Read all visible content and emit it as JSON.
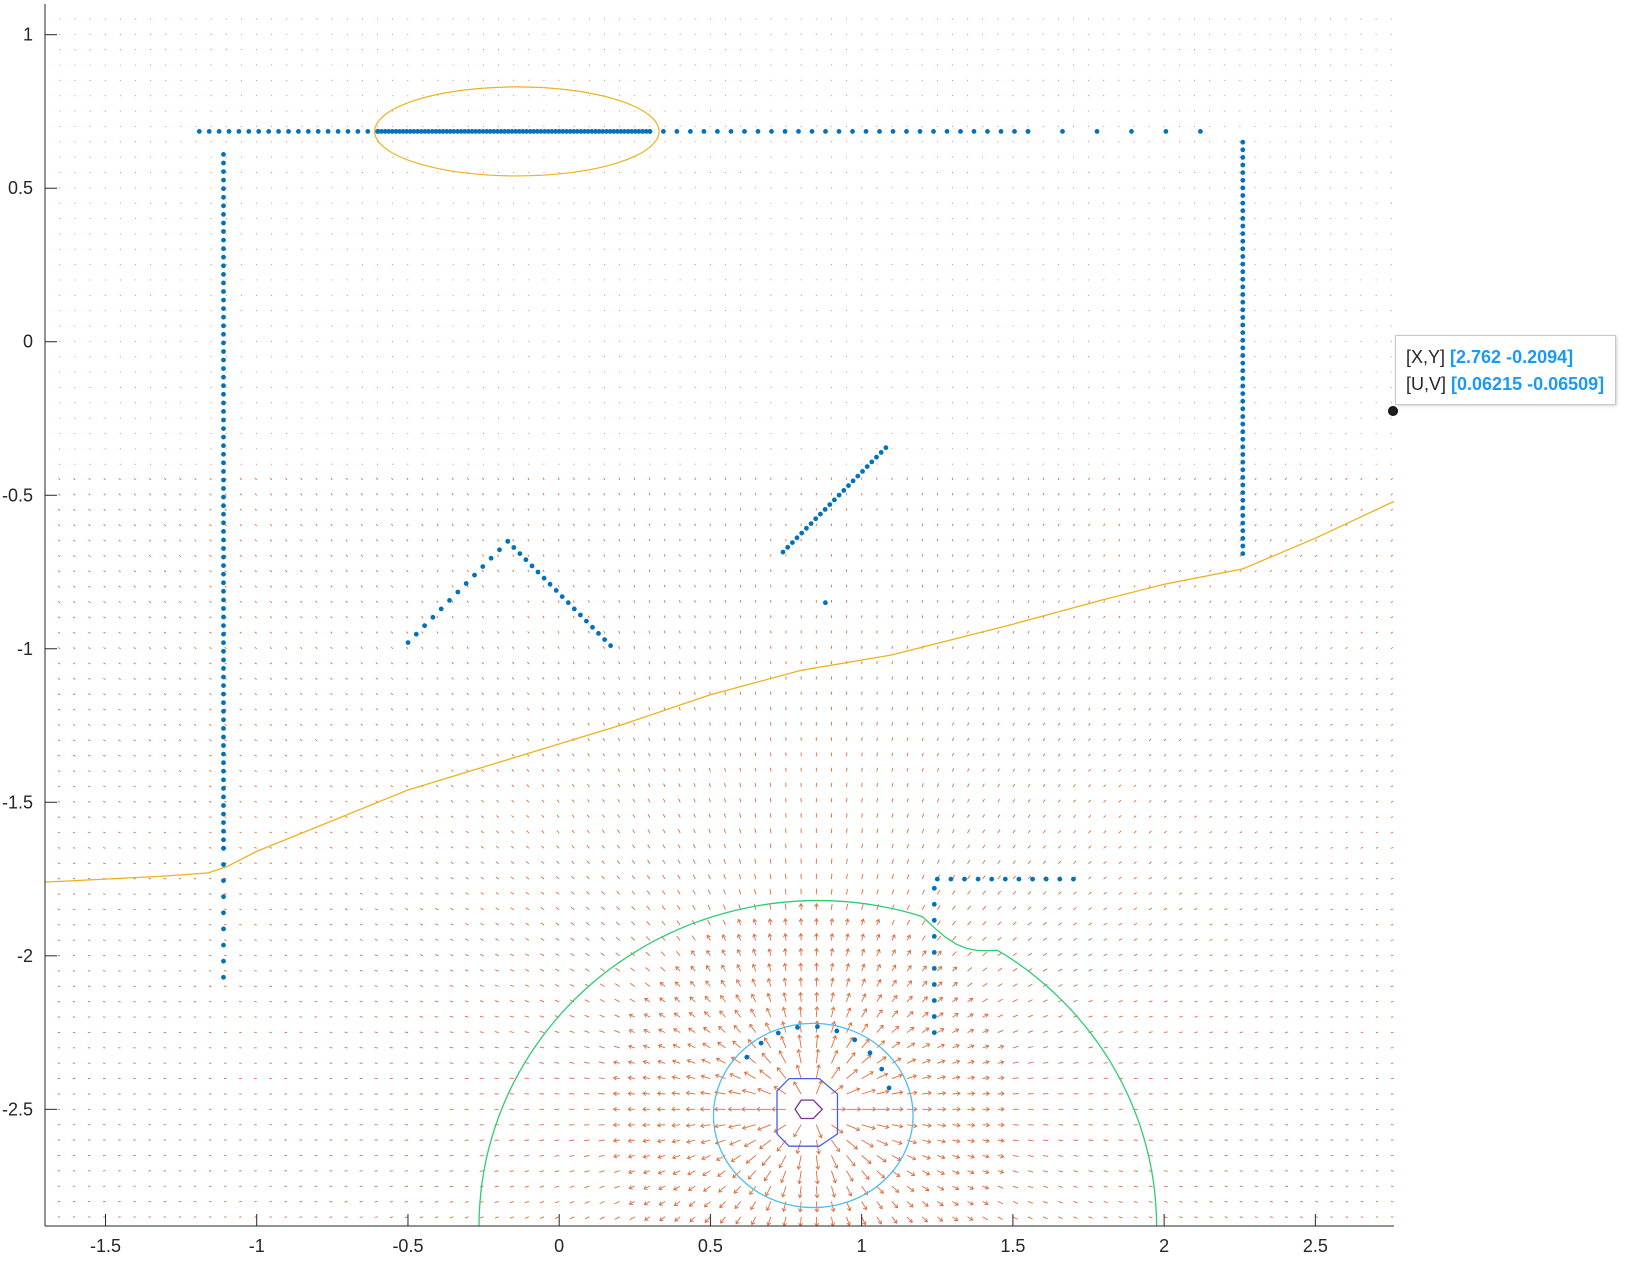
{
  "chart_data": {
    "type": "quiver-scatter-contour",
    "xlim": [
      -1.7,
      2.76
    ],
    "ylim": [
      -2.88,
      1.1
    ],
    "x_ticks": [
      -1.5,
      -1,
      -0.5,
      0,
      0.5,
      1,
      1.5,
      2,
      2.5
    ],
    "x_tick_labels": [
      "-1.5",
      "-1",
      "-0.5",
      "0",
      "0.5",
      "1",
      "1.5",
      "2",
      "2.5"
    ],
    "y_ticks": [
      1,
      0.5,
      0,
      -0.5,
      -1,
      -1.5,
      -2,
      -2.5
    ],
    "y_tick_labels": [
      "1",
      "0.5",
      "0",
      "-0.5",
      "-1",
      "-1.5",
      "-2",
      "-2.5"
    ],
    "grid": false,
    "quiver_field": {
      "source": [
        0.83,
        -2.5
      ],
      "dense_region_below_y": -0.45,
      "color": "#d95319"
    },
    "obstacle_points": {
      "color": "#0072bd",
      "segments": [
        {
          "from": [
            -1.19,
            0.685
          ],
          "to": [
            -0.6,
            0.685
          ],
          "step": 0.032
        },
        {
          "from": [
            -0.6,
            0.685
          ],
          "to": [
            0.3,
            0.685
          ],
          "step": 0.012
        },
        {
          "from": [
            0.3,
            0.685
          ],
          "to": [
            1.55,
            0.685
          ],
          "step": 0.045
        },
        {
          "from": [
            1.55,
            0.685
          ],
          "to": [
            2.12,
            0.685
          ],
          "step": 0.11
        },
        {
          "from": [
            -1.11,
            0.61
          ],
          "to": [
            -1.11,
            -1.65
          ],
          "step": 0.028
        },
        {
          "from": [
            -1.11,
            -1.65
          ],
          "to": [
            -1.11,
            -2.07
          ],
          "step": 0.055
        },
        {
          "from": [
            2.26,
            0.65
          ],
          "to": [
            2.26,
            -0.69
          ],
          "step": 0.025
        },
        {
          "from": [
            -0.17,
            -0.65
          ],
          "to": [
            0.17,
            -0.99
          ],
          "step": 0.028
        },
        {
          "from": [
            -0.17,
            -0.65
          ],
          "to": [
            -0.5,
            -0.98
          ],
          "step": 0.04
        },
        {
          "from": [
            0.74,
            -0.685
          ],
          "to": [
            1.08,
            -0.345
          ],
          "step": 0.022
        },
        {
          "from": [
            0.88,
            -0.85
          ],
          "to": [
            0.88,
            -0.85
          ],
          "step": 1
        },
        {
          "from": [
            1.25,
            -1.75
          ],
          "to": [
            1.7,
            -1.75
          ],
          "step": 0.045
        },
        {
          "from": [
            1.24,
            -1.78
          ],
          "to": [
            1.24,
            -2.25
          ],
          "step": 0.052
        }
      ],
      "arc": {
        "center": [
          0.83,
          -2.5
        ],
        "radius": 0.27,
        "from_deg": 15,
        "to_deg": 150,
        "step_deg": 14
      }
    },
    "ellipse": {
      "center": [
        -0.14,
        0.685
      ],
      "rx": 0.47,
      "ry": 0.145,
      "color": "#edb120"
    },
    "path_line": {
      "color": "#edb120",
      "x": [
        -1.7,
        -1.5,
        -1.3,
        -1.16,
        -1.1,
        -1.0,
        -0.8,
        -0.5,
        -0.2,
        0.2,
        0.5,
        0.8,
        1.1,
        1.5,
        1.8,
        2.0,
        2.26,
        2.5,
        2.76
      ],
      "y": [
        -1.76,
        -1.75,
        -1.74,
        -1.73,
        -1.71,
        -1.66,
        -1.58,
        -1.46,
        -1.37,
        -1.25,
        -1.15,
        -1.07,
        -1.02,
        -0.92,
        -0.84,
        -0.79,
        -0.74,
        -0.64,
        -0.52
      ]
    },
    "contours": [
      {
        "color": "#4dbeee",
        "type": "circle",
        "center": [
          0.84,
          -2.52
        ],
        "rx": 0.33,
        "ry": 0.3
      },
      {
        "color": "#2ecc71",
        "type": "arch",
        "center": [
          0.855,
          -2.88
        ],
        "rx": 1.12,
        "ry": 1.06
      },
      {
        "color": "#4a5de0",
        "type": "polygon",
        "x": [
          0.76,
          0.86,
          0.92,
          0.92,
          0.86,
          0.76,
          0.72,
          0.72
        ],
        "y": [
          -2.4,
          -2.4,
          -2.45,
          -2.58,
          -2.62,
          -2.62,
          -2.58,
          -2.44
        ]
      },
      {
        "color": "#7e2f8e",
        "type": "polygon",
        "x": [
          0.8,
          0.84,
          0.87,
          0.84,
          0.8,
          0.78
        ],
        "y": [
          -2.47,
          -2.47,
          -2.5,
          -2.53,
          -2.53,
          -2.5
        ]
      }
    ]
  },
  "datatip": {
    "xy_label": "[X,Y]",
    "xy_value": "[2.762 -0.2094]",
    "uv_label": "[U,V]",
    "uv_value": "[0.06215 -0.06509]"
  }
}
